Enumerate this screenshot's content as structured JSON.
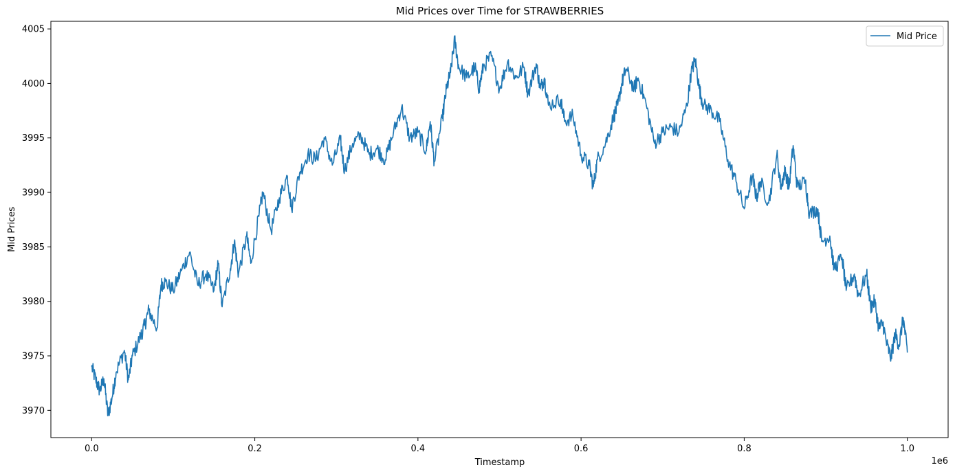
{
  "chart_data": {
    "type": "line",
    "title": "Mid Prices over Time for STRAWBERRIES",
    "xlabel": "Timestamp",
    "ylabel": "Mid Prices",
    "x_offset_label": "1e6",
    "xlim": [
      -0.05,
      1.05
    ],
    "ylim": [
      3967.5,
      4005.7
    ],
    "x_ticks": [
      0.0,
      0.2,
      0.4,
      0.6,
      0.8,
      1.0
    ],
    "x_tick_labels": [
      "0.0",
      "0.2",
      "0.4",
      "0.6",
      "0.8",
      "1.0"
    ],
    "y_ticks": [
      3970,
      3975,
      3980,
      3985,
      3990,
      3995,
      4000,
      4005
    ],
    "y_tick_labels": [
      "3970",
      "3975",
      "3980",
      "3985",
      "3990",
      "3995",
      "4000",
      "4005"
    ],
    "grid": false,
    "legend": {
      "position": "top-right",
      "entries": [
        "Mid Price"
      ]
    },
    "series": [
      {
        "name": "Mid Price",
        "color": "#1f77b4",
        "points": [
          [
            0.0,
            3974.0
          ],
          [
            0.005,
            3972.8
          ],
          [
            0.01,
            3971.8
          ],
          [
            0.015,
            3972.9
          ],
          [
            0.02,
            3969.5
          ],
          [
            0.025,
            3971.2
          ],
          [
            0.03,
            3973.5
          ],
          [
            0.04,
            3975.5
          ],
          [
            0.045,
            3972.8
          ],
          [
            0.05,
            3975.0
          ],
          [
            0.06,
            3976.8
          ],
          [
            0.065,
            3977.8
          ],
          [
            0.07,
            3979.2
          ],
          [
            0.08,
            3977.5
          ],
          [
            0.085,
            3981.5
          ],
          [
            0.09,
            3981.8
          ],
          [
            0.1,
            3981.0
          ],
          [
            0.11,
            3982.8
          ],
          [
            0.12,
            3984.5
          ],
          [
            0.13,
            3981.5
          ],
          [
            0.14,
            3982.5
          ],
          [
            0.15,
            3981.0
          ],
          [
            0.155,
            3983.5
          ],
          [
            0.16,
            3979.5
          ],
          [
            0.17,
            3983.0
          ],
          [
            0.175,
            3985.5
          ],
          [
            0.18,
            3982.5
          ],
          [
            0.19,
            3986.0
          ],
          [
            0.195,
            3983.5
          ],
          [
            0.205,
            3987.8
          ],
          [
            0.21,
            3990.0
          ],
          [
            0.22,
            3986.5
          ],
          [
            0.23,
            3989.5
          ],
          [
            0.24,
            3991.5
          ],
          [
            0.245,
            3988.5
          ],
          [
            0.255,
            3991.8
          ],
          [
            0.265,
            3993.5
          ],
          [
            0.275,
            3993.0
          ],
          [
            0.285,
            3995.0
          ],
          [
            0.295,
            3992.5
          ],
          [
            0.305,
            3994.8
          ],
          [
            0.31,
            3992.0
          ],
          [
            0.32,
            3994.5
          ],
          [
            0.33,
            3995.2
          ],
          [
            0.34,
            3993.5
          ],
          [
            0.35,
            3994.0
          ],
          [
            0.36,
            3993.0
          ],
          [
            0.37,
            3995.5
          ],
          [
            0.38,
            3997.8
          ],
          [
            0.39,
            3995.0
          ],
          [
            0.4,
            3995.5
          ],
          [
            0.41,
            3993.8
          ],
          [
            0.415,
            3996.5
          ],
          [
            0.42,
            3992.8
          ],
          [
            0.43,
            3996.8
          ],
          [
            0.435,
            3999.5
          ],
          [
            0.44,
            4001.0
          ],
          [
            0.445,
            4004.0
          ],
          [
            0.45,
            4001.5
          ],
          [
            0.46,
            4000.5
          ],
          [
            0.47,
            4001.5
          ],
          [
            0.475,
            3999.5
          ],
          [
            0.48,
            4001.5
          ],
          [
            0.49,
            4002.5
          ],
          [
            0.5,
            3999.5
          ],
          [
            0.51,
            4002.0
          ],
          [
            0.52,
            4000.5
          ],
          [
            0.53,
            4001.5
          ],
          [
            0.535,
            3999.0
          ],
          [
            0.545,
            4001.8
          ],
          [
            0.55,
            3999.5
          ],
          [
            0.555,
            4000.5
          ],
          [
            0.56,
            3998.0
          ],
          [
            0.575,
            3998.5
          ],
          [
            0.58,
            3996.5
          ],
          [
            0.59,
            3997.0
          ],
          [
            0.6,
            3993.5
          ],
          [
            0.61,
            3992.5
          ],
          [
            0.615,
            3990.5
          ],
          [
            0.62,
            3993.0
          ],
          [
            0.63,
            3994.5
          ],
          [
            0.64,
            3997.0
          ],
          [
            0.645,
            3998.0
          ],
          [
            0.65,
            4000.0
          ],
          [
            0.655,
            4001.3
          ],
          [
            0.665,
            3999.5
          ],
          [
            0.67,
            4000.5
          ],
          [
            0.68,
            3998.0
          ],
          [
            0.69,
            3994.5
          ],
          [
            0.7,
            3995.5
          ],
          [
            0.71,
            3996.0
          ],
          [
            0.72,
            3995.5
          ],
          [
            0.73,
            3998.0
          ],
          [
            0.735,
            4001.0
          ],
          [
            0.74,
            4002.2
          ],
          [
            0.745,
            3999.5
          ],
          [
            0.75,
            3998.0
          ],
          [
            0.76,
            3997.5
          ],
          [
            0.77,
            3996.5
          ],
          [
            0.78,
            3993.0
          ],
          [
            0.79,
            3991.0
          ],
          [
            0.8,
            3988.5
          ],
          [
            0.81,
            3991.5
          ],
          [
            0.815,
            3989.5
          ],
          [
            0.82,
            3991.0
          ],
          [
            0.83,
            3989.0
          ],
          [
            0.84,
            3993.5
          ],
          [
            0.845,
            3990.5
          ],
          [
            0.85,
            3992.0
          ],
          [
            0.855,
            3990.5
          ],
          [
            0.86,
            3994.3
          ],
          [
            0.865,
            3990.5
          ],
          [
            0.875,
            3991.0
          ],
          [
            0.88,
            3988.0
          ],
          [
            0.89,
            3988.5
          ],
          [
            0.895,
            3985.5
          ],
          [
            0.905,
            3986.0
          ],
          [
            0.91,
            3983.0
          ],
          [
            0.92,
            3984.0
          ],
          [
            0.925,
            3981.0
          ],
          [
            0.935,
            3982.5
          ],
          [
            0.94,
            3980.5
          ],
          [
            0.95,
            3982.5
          ],
          [
            0.955,
            3979.5
          ],
          [
            0.96,
            3980.0
          ],
          [
            0.965,
            3977.5
          ],
          [
            0.97,
            3978.0
          ],
          [
            0.975,
            3976.0
          ],
          [
            0.98,
            3974.8
          ],
          [
            0.985,
            3977.0
          ],
          [
            0.99,
            3976.0
          ],
          [
            0.995,
            3978.5
          ],
          [
            1.0,
            3975.3
          ]
        ]
      }
    ]
  }
}
